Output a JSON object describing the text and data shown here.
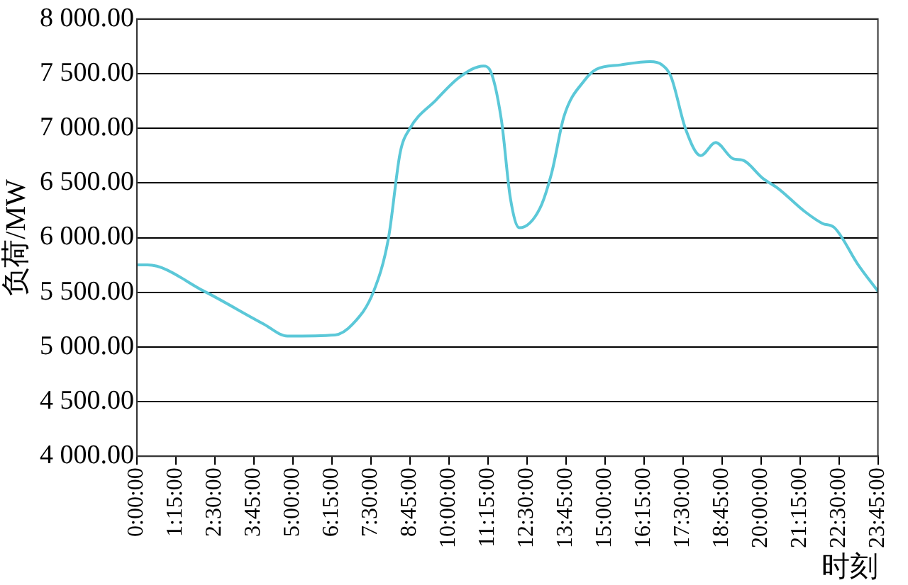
{
  "chart_data": {
    "type": "line",
    "xlabel": "时刻",
    "ylabel": "负荷/MW",
    "x": [
      0,
      0.34,
      2.15,
      4.06,
      4.82,
      6.35,
      6.92,
      7.59,
      8.06,
      8.44,
      8.73,
      9.59,
      10.35,
      11.11,
      11.3,
      11.68,
      11.97,
      12.26,
      12.92,
      13.3,
      13.69,
      14.35,
      14.73,
      15.5,
      16.45,
      16.83,
      17.12,
      17.59,
      18.07,
      18.55,
      19.12,
      19.4,
      20.07,
      20.55,
      21.4,
      21.97,
      22.36,
      23.12,
      23.75
    ],
    "series": [
      {
        "color": "#5bc8d8",
        "values": [
          5750,
          5750,
          5510,
          5210,
          5100,
          5110,
          5210,
          5510,
          5990,
          6780,
          6990,
          7260,
          7470,
          7570,
          7540,
          7080,
          6360,
          6090,
          6270,
          6600,
          7110,
          7440,
          7540,
          7580,
          7610,
          7580,
          7470,
          6990,
          6750,
          6870,
          6720,
          6710,
          6540,
          6450,
          6240,
          6130,
          6090,
          5750,
          5510
        ]
      }
    ],
    "xlim": [
      0,
      23.75
    ],
    "xticks": [
      {
        "value": 0,
        "label": "0:00:00"
      },
      {
        "value": 1.25,
        "label": "1:15:00"
      },
      {
        "value": 2.5,
        "label": "2:30:00"
      },
      {
        "value": 3.75,
        "label": "3:45:00"
      },
      {
        "value": 5,
        "label": "5:00:00"
      },
      {
        "value": 6.25,
        "label": "6:15:00"
      },
      {
        "value": 7.5,
        "label": "7:30:00"
      },
      {
        "value": 8.75,
        "label": "8:45:00"
      },
      {
        "value": 10,
        "label": "10:00:00"
      },
      {
        "value": 11.25,
        "label": "11:15:00"
      },
      {
        "value": 12.5,
        "label": "12:30:00"
      },
      {
        "value": 13.75,
        "label": "13:45:00"
      },
      {
        "value": 15,
        "label": "15:00:00"
      },
      {
        "value": 16.25,
        "label": "16:15:00"
      },
      {
        "value": 17.5,
        "label": "17:30:00"
      },
      {
        "value": 18.75,
        "label": "18:45:00"
      },
      {
        "value": 20,
        "label": "20:00:00"
      },
      {
        "value": 21.25,
        "label": "21:15:00"
      },
      {
        "value": 22.5,
        "label": "22:30:00"
      },
      {
        "value": 23.75,
        "label": "23:45:00"
      }
    ],
    "ylim": [
      4000,
      8000
    ],
    "yticks": [
      {
        "value": 4000,
        "label": "4 000.00"
      },
      {
        "value": 4500,
        "label": "4 500.00"
      },
      {
        "value": 5000,
        "label": "5 000.00"
      },
      {
        "value": 5500,
        "label": "5 500.00"
      },
      {
        "value": 6000,
        "label": "6 000.00"
      },
      {
        "value": 6500,
        "label": "6 500.00"
      },
      {
        "value": 7000,
        "label": "7 000.00"
      },
      {
        "value": 7500,
        "label": "7 500.00"
      },
      {
        "value": 8000,
        "label": "8 000.00"
      }
    ],
    "grid": "y",
    "legend": false,
    "marker": "none",
    "line_style": "solid"
  }
}
